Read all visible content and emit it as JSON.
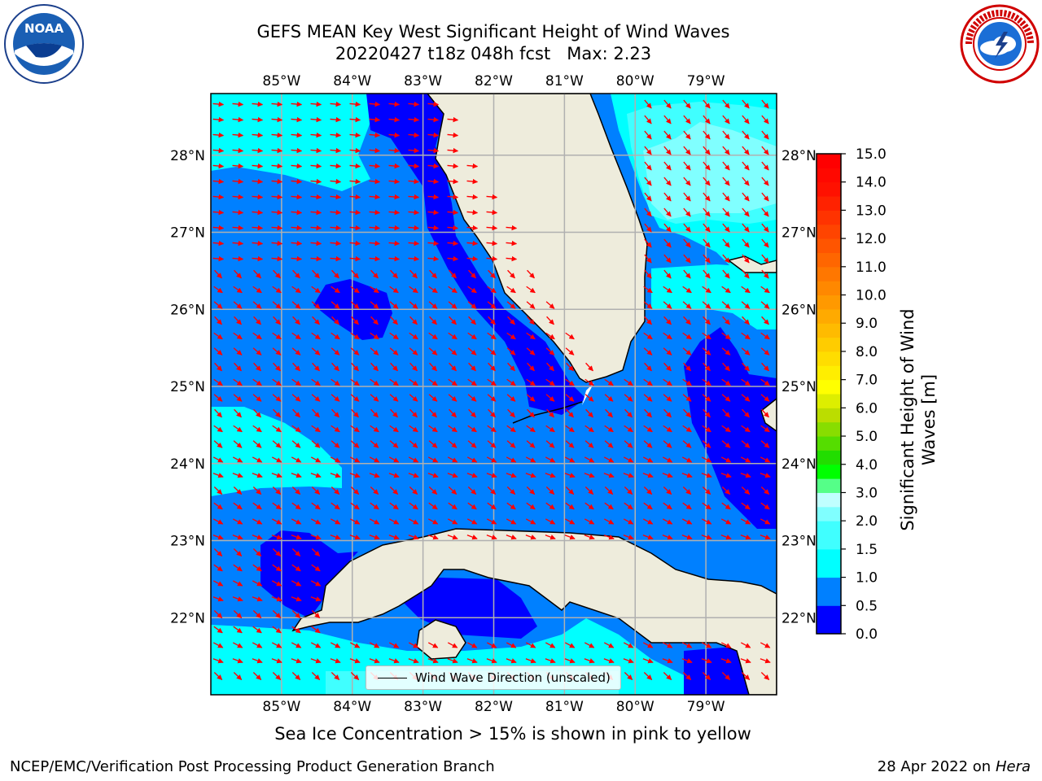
{
  "title": {
    "line1": "GEFS MEAN Key West Significant Height of Wind Waves",
    "line2": "20220427 t18z 048h fcst   Max: 2.23"
  },
  "logos": {
    "left": "noaa-logo",
    "right": "nws-logo",
    "noaa_text": "NOAA",
    "nws_text": "NATIONAL WEATHER SERVICE"
  },
  "map": {
    "lon_labels": [
      "85°W",
      "84°W",
      "83°W",
      "82°W",
      "81°W",
      "80°W",
      "79°W"
    ],
    "lat_labels": [
      "28°N",
      "27°N",
      "26°N",
      "25°N",
      "24°N",
      "23°N",
      "22°N"
    ],
    "lon_range": [
      -86.0,
      -78.0
    ],
    "lat_range": [
      21.0,
      28.8
    ],
    "grid": true
  },
  "colorbar": {
    "label": "Significant Height of Wind Waves [m]",
    "ticks": [
      "15.0",
      "14.0",
      "13.0",
      "12.0",
      "11.0",
      "10.0",
      "9.0",
      "8.0",
      "7.0",
      "6.0",
      "5.0",
      "4.0",
      "3.0",
      "2.0",
      "1.5",
      "1.0",
      "0.5",
      "0.0"
    ],
    "levels": [
      0.0,
      0.5,
      1.0,
      1.5,
      2.0,
      2.5,
      3.0,
      3.5,
      4.0,
      4.5,
      5.0,
      5.5,
      6.0,
      6.5,
      7.0,
      7.5,
      8.0,
      8.5,
      9.0,
      9.5,
      10.0,
      10.5,
      11.0,
      11.5,
      12.0,
      12.5,
      13.0,
      13.5,
      14.0,
      14.5,
      15.0
    ],
    "colors": [
      "#0000ff",
      "#0080ff",
      "#00ffff",
      "#40ffff",
      "#80ffff",
      "#c0ffff",
      "#55ff88",
      "#00ff00",
      "#22dd00",
      "#55dd00",
      "#88dd00",
      "#bbdd00",
      "#ddee00",
      "#ffff00",
      "#ffee00",
      "#ffdd00",
      "#ffcc00",
      "#ffbb00",
      "#ffaa00",
      "#ff9900",
      "#ff8800",
      "#ff7700",
      "#ff6600",
      "#ff5500",
      "#ff4400",
      "#ff3300",
      "#ff2200",
      "#ff1100",
      "#ff0800",
      "#ff0000"
    ]
  },
  "legend": {
    "label": "Wind Wave Direction (unscaled)"
  },
  "colors": {
    "land": "#eeecdc",
    "arrow": "#ff0000",
    "coast": "#000000",
    "grid": "#b0b0b0",
    "c0": "#0000ff",
    "c05": "#0080ff",
    "c10": "#00ffff",
    "c15": "#40ffff",
    "c20": "#80ffff"
  },
  "footer": {
    "note": "Sea Ice Concentration > 15% is shown in pink to yellow",
    "left": "NCEP/EMC/Verification Post Processing Product Generation Branch",
    "right_prefix": "28 Apr 2022 on ",
    "right_host": "Hera"
  }
}
